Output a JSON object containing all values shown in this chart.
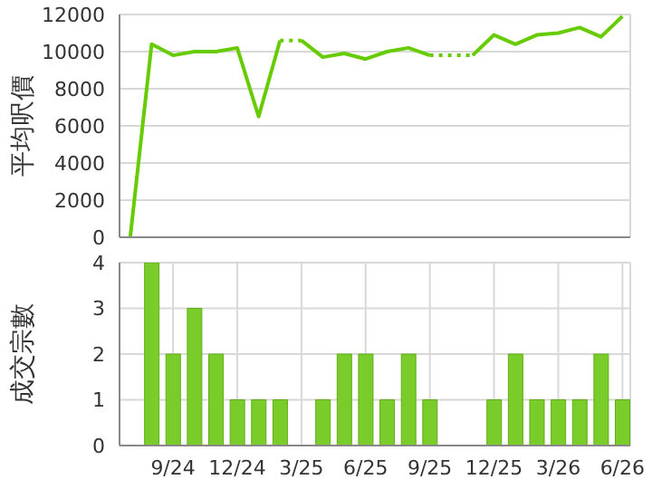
{
  "chart_data": [
    {
      "type": "line",
      "ylabel": "平均呎價",
      "tick_labels": "y",
      "grid": true,
      "marker": "none",
      "xlim": [
        "2024-06-16",
        "2026-06-12"
      ],
      "ylim": [
        0,
        12000
      ],
      "yticks": [
        0,
        2000,
        4000,
        6000,
        8000,
        10000,
        12000
      ],
      "xticks": [
        {
          "value": "2024-09",
          "label": null
        },
        {
          "value": "2024-12",
          "label": null
        },
        {
          "value": "2025-03",
          "label": null
        },
        {
          "value": "2025-06",
          "label": null
        },
        {
          "value": "2025-09",
          "label": null
        },
        {
          "value": "2025-12",
          "label": null
        },
        {
          "value": "2026-03",
          "label": null
        },
        {
          "value": "2026-06",
          "label": null
        }
      ],
      "series": [
        {
          "color": "#66cc00",
          "line_style": "solid",
          "x": [
            "2024-07",
            "2024-08",
            "2024-09",
            "2024-10",
            "2024-11",
            "2024-12",
            "2025-01",
            "2025-02"
          ],
          "values": [
            0,
            10400,
            9800,
            10000,
            10000,
            10200,
            6500,
            10600
          ]
        },
        {
          "color": "#66cc00",
          "line_style": "dotted",
          "x": [
            "2025-02",
            "2025-03"
          ],
          "values": [
            10600,
            10600
          ]
        },
        {
          "color": "#66cc00",
          "line_style": "solid",
          "x": [
            "2025-03",
            "2025-04",
            "2025-05",
            "2025-06",
            "2025-07",
            "2025-08",
            "2025-09"
          ],
          "values": [
            10600,
            9700,
            9900,
            9600,
            10000,
            10200,
            9800
          ]
        },
        {
          "color": "#66cc00",
          "line_style": "dotted",
          "x": [
            "2025-09",
            "2025-11"
          ],
          "values": [
            9800,
            9800
          ]
        },
        {
          "color": "#66cc00",
          "line_style": "solid",
          "x": [
            "2025-11",
            "2025-12",
            "2026-01",
            "2026-02",
            "2026-03",
            "2026-04",
            "2026-05",
            "2026-06"
          ],
          "values": [
            9800,
            10900,
            10400,
            10900,
            11000,
            11300,
            10800,
            11900
          ]
        }
      ]
    },
    {
      "type": "bar",
      "ylabel": "成交宗數",
      "grid": true,
      "color": "#7acc2a",
      "xlim": [
        "2024-06-16",
        "2026-06-12"
      ],
      "ylim": [
        0,
        4
      ],
      "yticks": [
        0,
        1,
        2,
        3,
        4
      ],
      "xticks": [
        {
          "value": "2024-09",
          "label": "9/24"
        },
        {
          "value": "2024-12",
          "label": "12/24"
        },
        {
          "value": "2025-03",
          "label": "3/25"
        },
        {
          "value": "2025-06",
          "label": "6/25"
        },
        {
          "value": "2025-09",
          "label": "9/25"
        },
        {
          "value": "2025-12",
          "label": "12/25"
        },
        {
          "value": "2026-03",
          "label": "3/26"
        },
        {
          "value": "2026-06",
          "label": "6/26"
        }
      ],
      "x": [
        "2024-07",
        "2024-08",
        "2024-09",
        "2024-10",
        "2024-11",
        "2024-12",
        "2025-01",
        "2025-02",
        "2025-03",
        "2025-04",
        "2025-05",
        "2025-06",
        "2025-07",
        "2025-08",
        "2025-09",
        "2025-10",
        "2025-11",
        "2025-12",
        "2026-01",
        "2026-02",
        "2026-03",
        "2026-04",
        "2026-05",
        "2026-06"
      ],
      "values": [
        0,
        4,
        2,
        3,
        2,
        1,
        1,
        1,
        0,
        1,
        2,
        2,
        1,
        2,
        1,
        0,
        0,
        1,
        2,
        1,
        1,
        1,
        2,
        1
      ]
    }
  ]
}
